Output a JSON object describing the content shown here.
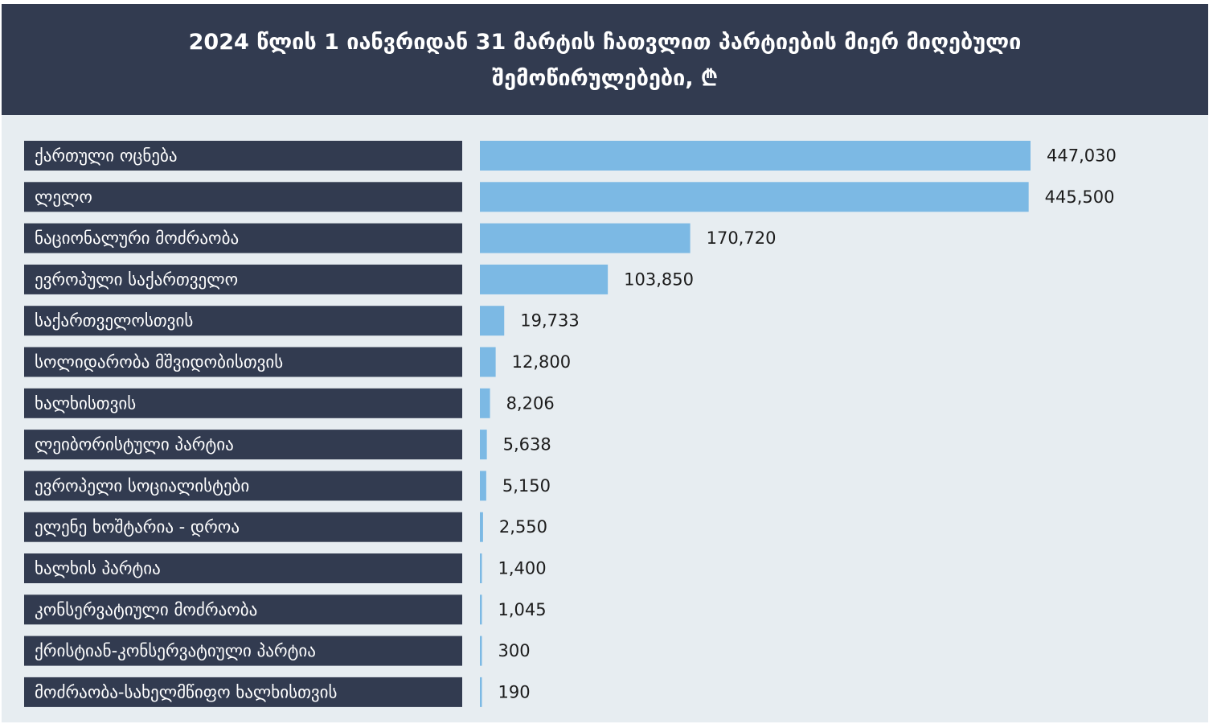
{
  "chart_data": {
    "type": "bar",
    "orientation": "horizontal",
    "title_lines": [
      "2024 წლის 1 იანვრიდან 31 მარტის ჩათვლით პარტიების მიერ მიღებული",
      "შემოწირულებები, ₾"
    ],
    "categories": [
      "ქართული ოცნება",
      "ლელო",
      "ნაციონალური მოძრაობა",
      "ევროპული საქართველო",
      "საქართველოსთვის",
      "სოლიდარობა მშვიდობისთვის",
      "ხალხისთვის",
      "ლეიბორისტული პარტია",
      "ევროპელი სოციალისტები",
      "ელენე ხოშტარია - დროა",
      "ხალხის პარტია",
      "კონსერვატიული მოძრაობა",
      " ქრისტიან-კონსერვატიული პარტია",
      "მოძრაობა-სახელმწიფო ხალხისთვის"
    ],
    "values": [
      447030,
      445500,
      170720,
      103850,
      19733,
      12800,
      8206,
      5638,
      5150,
      2550,
      1400,
      1045,
      300,
      190
    ],
    "value_labels": [
      "447,030",
      "445,500",
      "170,720",
      "103,850",
      "19,733",
      "12,800",
      "8,206",
      "5,638",
      "5,150",
      "2,550",
      "1,400",
      "1,045",
      "300",
      "190"
    ],
    "xlim": [
      0,
      447030
    ],
    "grid": false,
    "legend": "none",
    "colors": {
      "header_bg": "#323b50",
      "background": "#e7edf1",
      "label_box": "#323b50",
      "bar": "#7cb9e4"
    }
  }
}
